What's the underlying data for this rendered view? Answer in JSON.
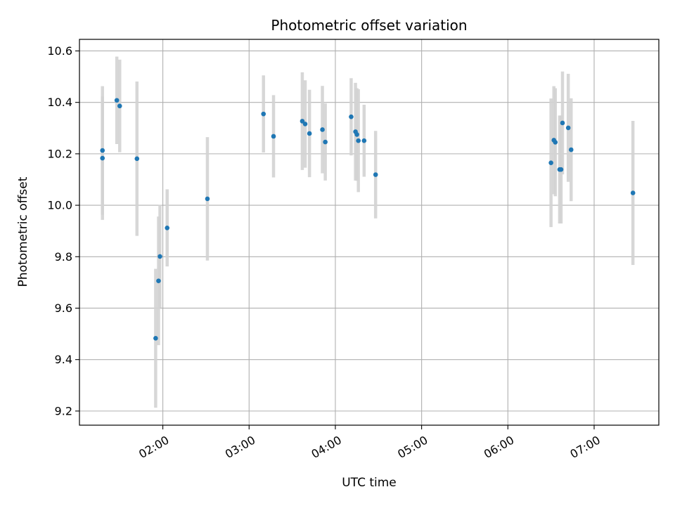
{
  "chart_data": {
    "type": "scatter",
    "title": "Photometric offset variation",
    "xlabel": "UTC time",
    "ylabel": "Photometric offset",
    "x_unit": "time (HH:MM, UTC)",
    "xlim": [
      "01:02",
      "07:45"
    ],
    "ylim": [
      9.145,
      10.645
    ],
    "xticks": [
      "02:00",
      "03:00",
      "04:00",
      "05:00",
      "06:00",
      "07:00"
    ],
    "yticks": [
      "9.2",
      "9.4",
      "9.6",
      "9.8",
      "10.0",
      "10.2",
      "10.4",
      "10.6"
    ],
    "grid": true,
    "point_color": "#1f77b4",
    "errorbar_color": "#d3d3d3",
    "points": [
      {
        "x": "01:18",
        "y": 10.183,
        "err": 0.24
      },
      {
        "x": "01:18",
        "y": 10.213,
        "err": 0.25
      },
      {
        "x": "01:28",
        "y": 10.408,
        "err": 0.17
      },
      {
        "x": "01:30",
        "y": 10.386,
        "err": 0.18
      },
      {
        "x": "01:42",
        "y": 10.181,
        "err": 0.3
      },
      {
        "x": "01:55",
        "y": 9.483,
        "err": 0.27
      },
      {
        "x": "01:57",
        "y": 9.706,
        "err": 0.25
      },
      {
        "x": "01:58",
        "y": 9.801,
        "err": 0.2
      },
      {
        "x": "02:03",
        "y": 9.912,
        "err": 0.15
      },
      {
        "x": "02:31",
        "y": 10.025,
        "err": 0.24
      },
      {
        "x": "03:10",
        "y": 10.355,
        "err": 0.15
      },
      {
        "x": "03:17",
        "y": 10.268,
        "err": 0.16
      },
      {
        "x": "03:37",
        "y": 10.327,
        "err": 0.19
      },
      {
        "x": "03:39",
        "y": 10.316,
        "err": 0.17
      },
      {
        "x": "03:42",
        "y": 10.279,
        "err": 0.17
      },
      {
        "x": "03:51",
        "y": 10.294,
        "err": 0.17
      },
      {
        "x": "03:53",
        "y": 10.246,
        "err": 0.15
      },
      {
        "x": "04:11",
        "y": 10.344,
        "err": 0.15
      },
      {
        "x": "04:14",
        "y": 10.286,
        "err": 0.19
      },
      {
        "x": "04:15",
        "y": 10.275,
        "err": 0.18
      },
      {
        "x": "04:16",
        "y": 10.251,
        "err": 0.2
      },
      {
        "x": "04:20",
        "y": 10.251,
        "err": 0.14
      },
      {
        "x": "04:28",
        "y": 10.119,
        "err": 0.17
      },
      {
        "x": "06:30",
        "y": 10.165,
        "err": 0.25
      },
      {
        "x": "06:32",
        "y": 10.253,
        "err": 0.21
      },
      {
        "x": "06:33",
        "y": 10.245,
        "err": 0.21
      },
      {
        "x": "06:36",
        "y": 10.139,
        "err": 0.21
      },
      {
        "x": "06:37",
        "y": 10.139,
        "err": 0.21
      },
      {
        "x": "06:38",
        "y": 10.32,
        "err": 0.2
      },
      {
        "x": "06:42",
        "y": 10.301,
        "err": 0.21
      },
      {
        "x": "06:44",
        "y": 10.216,
        "err": 0.2
      },
      {
        "x": "07:27",
        "y": 10.048,
        "err": 0.28
      }
    ]
  }
}
